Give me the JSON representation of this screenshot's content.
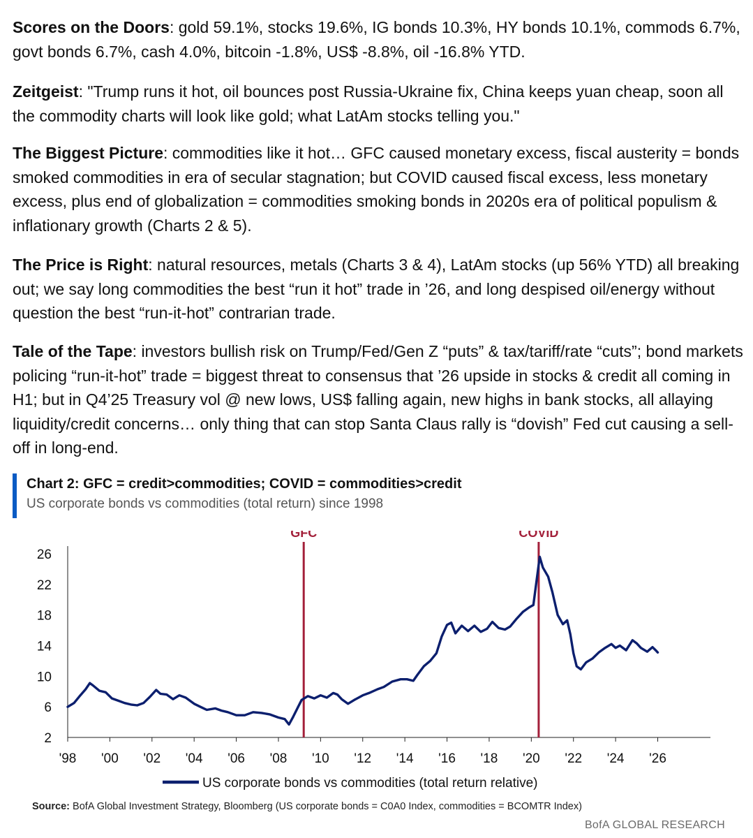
{
  "paragraphs": [
    {
      "head": "Scores on the Doors",
      "body": ": gold 59.1%, stocks 19.6%, IG bonds 10.3%, HY bonds 10.1%, commods 6.7%, govt bonds 6.7%, cash 4.0%, bitcoin -1.8%, US$ -8.8%, oil -16.8% YTD."
    },
    {
      "head": "Zeitgeist",
      "body": ": \"Trump runs it hot, oil bounces post Russia-Ukraine fix, China keeps yuan cheap, soon all the commodity charts will look like gold; what LatAm stocks telling you.\""
    },
    {
      "head": "The Biggest Picture",
      "body": ": commodities like it hot… GFC caused monetary excess, fiscal austerity = bonds smoked commodities in era of secular stagnation; but COVID caused fiscal excess, less monetary excess, plus end of globalization = commodities smoking bonds in 2020s era of political populism & inflationary growth (Charts 2 & 5)."
    },
    {
      "head": "The Price is Right",
      "body": ": natural resources, metals (Charts 3 & 4), LatAm stocks (up 56% YTD) all breaking out; we say long commodities the best “run it hot” trade in ’26, and long despised oil/energy without question the best “run-it-hot” contrarian trade."
    },
    {
      "head": "Tale of the Tape",
      "body": ": investors bullish risk on Trump/Fed/Gen Z “puts” & tax/tariff/rate “cuts”; bond markets policing “run-it-hot” trade = biggest threat to consensus that ’26 upside in stocks & credit all coming in H1; but in Q4’25 Treasury vol @ new lows, US$ falling again, new highs in bank stocks, all allaying liquidity/credit concerns… only thing that can stop Santa Claus rally is “dovish” Fed cut causing a sell-off in long-end."
    }
  ],
  "chart": {
    "title": "Chart 2: GFC = credit>commodities; COVID = commodities>credit",
    "subtitle": "US corporate bonds vs commodities (total return) since 1998"
  },
  "source": {
    "label": "Source:",
    "text": " BofA Global Investment Strategy, Bloomberg (US corporate bonds = C0A0 Index, commodities = BCOMTR Index)"
  },
  "brand": "BofA GLOBAL RESEARCH",
  "colors": {
    "line": "#0c1f6e",
    "event": "#a3203a",
    "accent": "#0a5bc4"
  },
  "chart_data": {
    "type": "line",
    "title": "Chart 2: GFC = credit>commodities; COVID = commodities>credit",
    "subtitle": "US corporate bonds vs commodities (total return) since 1998",
    "xlabel": "",
    "ylabel": "",
    "xlim": [
      1998,
      2028.5
    ],
    "ylim": [
      2,
      27
    ],
    "yticks": [
      2,
      6,
      10,
      14,
      18,
      22,
      26
    ],
    "xticks": [
      1998,
      2000,
      2002,
      2004,
      2006,
      2008,
      2010,
      2012,
      2014,
      2016,
      2018,
      2020,
      2022,
      2024,
      2026
    ],
    "xtick_labels": [
      "'98",
      "'00",
      "'02",
      "'04",
      "'06",
      "'08",
      "'10",
      "'12",
      "'14",
      "'16",
      "'18",
      "'20",
      "'22",
      "'24",
      "'26"
    ],
    "grid": false,
    "legend": "bottom",
    "annotations": [
      {
        "label": "GFC",
        "x": 2009.2
      },
      {
        "label": "COVID",
        "x": 2020.35
      }
    ],
    "series": [
      {
        "name": "US corporate bonds vs commodities (total return relative)",
        "points": [
          [
            1998.0,
            6.0
          ],
          [
            1998.3,
            6.5
          ],
          [
            1998.6,
            7.5
          ],
          [
            1998.85,
            8.3
          ],
          [
            1999.05,
            9.1
          ],
          [
            1999.2,
            8.8
          ],
          [
            1999.5,
            8.1
          ],
          [
            1999.8,
            7.9
          ],
          [
            2000.1,
            7.1
          ],
          [
            2000.4,
            6.8
          ],
          [
            2000.7,
            6.5
          ],
          [
            2001.0,
            6.3
          ],
          [
            2001.3,
            6.2
          ],
          [
            2001.6,
            6.5
          ],
          [
            2001.9,
            7.3
          ],
          [
            2002.2,
            8.2
          ],
          [
            2002.4,
            7.7
          ],
          [
            2002.7,
            7.6
          ],
          [
            2003.0,
            7.0
          ],
          [
            2003.3,
            7.5
          ],
          [
            2003.6,
            7.2
          ],
          [
            2004.0,
            6.4
          ],
          [
            2004.3,
            6.0
          ],
          [
            2004.6,
            5.6
          ],
          [
            2005.0,
            5.8
          ],
          [
            2005.3,
            5.5
          ],
          [
            2005.6,
            5.3
          ],
          [
            2006.0,
            4.9
          ],
          [
            2006.4,
            4.9
          ],
          [
            2006.8,
            5.3
          ],
          [
            2007.2,
            5.2
          ],
          [
            2007.6,
            5.0
          ],
          [
            2008.0,
            4.6
          ],
          [
            2008.3,
            4.4
          ],
          [
            2008.5,
            3.7
          ],
          [
            2008.7,
            4.7
          ],
          [
            2008.9,
            5.8
          ],
          [
            2009.1,
            6.9
          ],
          [
            2009.4,
            7.4
          ],
          [
            2009.7,
            7.1
          ],
          [
            2010.0,
            7.5
          ],
          [
            2010.3,
            7.2
          ],
          [
            2010.6,
            7.8
          ],
          [
            2010.8,
            7.6
          ],
          [
            2011.0,
            7.0
          ],
          [
            2011.3,
            6.4
          ],
          [
            2011.6,
            6.9
          ],
          [
            2012.0,
            7.5
          ],
          [
            2012.3,
            7.8
          ],
          [
            2012.7,
            8.3
          ],
          [
            2013.0,
            8.6
          ],
          [
            2013.4,
            9.3
          ],
          [
            2013.8,
            9.6
          ],
          [
            2014.1,
            9.6
          ],
          [
            2014.4,
            9.4
          ],
          [
            2014.6,
            10.2
          ],
          [
            2014.9,
            11.3
          ],
          [
            2015.2,
            12.0
          ],
          [
            2015.5,
            13.0
          ],
          [
            2015.75,
            15.2
          ],
          [
            2016.0,
            16.7
          ],
          [
            2016.2,
            17.0
          ],
          [
            2016.4,
            15.6
          ],
          [
            2016.7,
            16.6
          ],
          [
            2017.0,
            15.9
          ],
          [
            2017.3,
            16.6
          ],
          [
            2017.6,
            15.8
          ],
          [
            2017.9,
            16.2
          ],
          [
            2018.15,
            17.1
          ],
          [
            2018.45,
            16.3
          ],
          [
            2018.75,
            16.1
          ],
          [
            2019.0,
            16.5
          ],
          [
            2019.3,
            17.5
          ],
          [
            2019.6,
            18.4
          ],
          [
            2019.9,
            19.0
          ],
          [
            2020.1,
            19.3
          ],
          [
            2020.25,
            22.5
          ],
          [
            2020.4,
            25.6
          ],
          [
            2020.55,
            24.2
          ],
          [
            2020.8,
            23.0
          ],
          [
            2021.0,
            21.0
          ],
          [
            2021.25,
            18.0
          ],
          [
            2021.5,
            16.8
          ],
          [
            2021.7,
            17.3
          ],
          [
            2021.85,
            15.5
          ],
          [
            2022.0,
            13.0
          ],
          [
            2022.15,
            11.3
          ],
          [
            2022.35,
            10.9
          ],
          [
            2022.6,
            11.8
          ],
          [
            2022.9,
            12.3
          ],
          [
            2023.2,
            13.1
          ],
          [
            2023.5,
            13.7
          ],
          [
            2023.8,
            14.2
          ],
          [
            2024.0,
            13.7
          ],
          [
            2024.2,
            14.0
          ],
          [
            2024.5,
            13.4
          ],
          [
            2024.8,
            14.7
          ],
          [
            2025.0,
            14.3
          ],
          [
            2025.2,
            13.7
          ],
          [
            2025.5,
            13.2
          ],
          [
            2025.75,
            13.8
          ],
          [
            2025.9,
            13.4
          ],
          [
            2026.0,
            13.1
          ]
        ]
      }
    ]
  }
}
